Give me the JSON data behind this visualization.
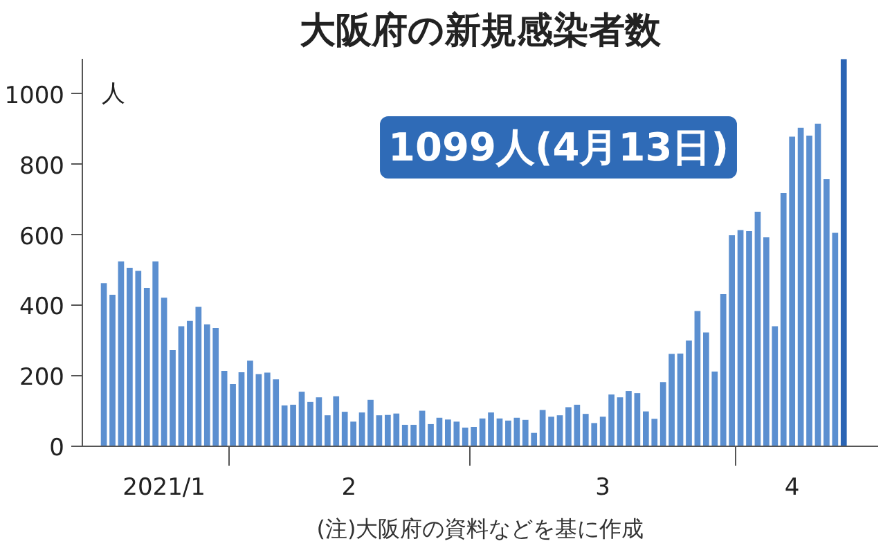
{
  "chart_data": {
    "type": "bar",
    "title": "大阪府の新規感染者数",
    "ylabel": "人",
    "x": [
      "2021-01-17",
      "2021-01-18",
      "2021-01-19",
      "2021-01-20",
      "2021-01-21",
      "2021-01-22",
      "2021-01-23",
      "2021-01-24",
      "2021-01-25",
      "2021-01-26",
      "2021-01-27",
      "2021-01-28",
      "2021-01-29",
      "2021-01-30",
      "2021-01-31",
      "2021-02-01",
      "2021-02-02",
      "2021-02-03",
      "2021-02-04",
      "2021-02-05",
      "2021-02-06",
      "2021-02-07",
      "2021-02-08",
      "2021-02-09",
      "2021-02-10",
      "2021-02-11",
      "2021-02-12",
      "2021-02-13",
      "2021-02-14",
      "2021-02-15",
      "2021-02-16",
      "2021-02-17",
      "2021-02-18",
      "2021-02-19",
      "2021-02-20",
      "2021-02-21",
      "2021-02-22",
      "2021-02-23",
      "2021-02-24",
      "2021-02-25",
      "2021-02-26",
      "2021-02-27",
      "2021-02-28",
      "2021-03-01",
      "2021-03-02",
      "2021-03-03",
      "2021-03-04",
      "2021-03-05",
      "2021-03-06",
      "2021-03-07",
      "2021-03-08",
      "2021-03-09",
      "2021-03-10",
      "2021-03-11",
      "2021-03-12",
      "2021-03-13",
      "2021-03-14",
      "2021-03-15",
      "2021-03-16",
      "2021-03-17",
      "2021-03-18",
      "2021-03-19",
      "2021-03-20",
      "2021-03-21",
      "2021-03-22",
      "2021-03-23",
      "2021-03-24",
      "2021-03-25",
      "2021-03-26",
      "2021-03-27",
      "2021-03-28",
      "2021-03-29",
      "2021-03-30",
      "2021-03-31",
      "2021-04-01",
      "2021-04-02",
      "2021-04-03",
      "2021-04-04",
      "2021-04-05",
      "2021-04-06",
      "2021-04-07",
      "2021-04-08",
      "2021-04-09",
      "2021-04-10",
      "2021-04-11",
      "2021-04-12",
      "2021-04-13"
    ],
    "values": [
      463,
      430,
      525,
      507,
      498,
      450,
      525,
      422,
      273,
      341,
      356,
      396,
      346,
      336,
      214,
      177,
      210,
      243,
      205,
      209,
      190,
      116,
      118,
      155,
      126,
      139,
      88,
      142,
      98,
      70,
      96,
      132,
      88,
      89,
      93,
      61,
      61,
      101,
      63,
      81,
      76,
      70,
      53,
      55,
      79,
      96,
      79,
      73,
      81,
      75,
      38,
      103,
      84,
      88,
      111,
      118,
      92,
      66,
      84,
      147,
      139,
      157,
      151,
      99,
      78,
      182,
      262,
      263,
      300,
      384,
      323,
      212,
      432,
      599,
      614,
      611,
      666,
      593,
      341,
      719,
      879,
      904,
      882,
      916,
      758,
      606,
      1099
    ],
    "colors": [
      "#5b8fd0",
      "#5b8fd0",
      "#5b8fd0",
      "#5b8fd0",
      "#5b8fd0",
      "#5b8fd0",
      "#5b8fd0",
      "#5b8fd0",
      "#5b8fd0",
      "#5b8fd0",
      "#5b8fd0",
      "#5b8fd0",
      "#5b8fd0",
      "#5b8fd0",
      "#5b8fd0",
      "#5b8fd0",
      "#5b8fd0",
      "#5b8fd0",
      "#5b8fd0",
      "#5b8fd0",
      "#5b8fd0",
      "#5b8fd0",
      "#5b8fd0",
      "#5b8fd0",
      "#5b8fd0",
      "#5b8fd0",
      "#5b8fd0",
      "#5b8fd0",
      "#5b8fd0",
      "#5b8fd0",
      "#5b8fd0",
      "#5b8fd0",
      "#5b8fd0",
      "#5b8fd0",
      "#5b8fd0",
      "#5b8fd0",
      "#5b8fd0",
      "#5b8fd0",
      "#5b8fd0",
      "#5b8fd0",
      "#5b8fd0",
      "#5b8fd0",
      "#5b8fd0",
      "#5b8fd0",
      "#5b8fd0",
      "#5b8fd0",
      "#5b8fd0",
      "#5b8fd0",
      "#5b8fd0",
      "#5b8fd0",
      "#5b8fd0",
      "#5b8fd0",
      "#5b8fd0",
      "#5b8fd0",
      "#5b8fd0",
      "#5b8fd0",
      "#5b8fd0",
      "#5b8fd0",
      "#5b8fd0",
      "#5b8fd0",
      "#5b8fd0",
      "#5b8fd0",
      "#5b8fd0",
      "#5b8fd0",
      "#5b8fd0",
      "#5b8fd0",
      "#5b8fd0",
      "#5b8fd0",
      "#5b8fd0",
      "#5b8fd0",
      "#5b8fd0",
      "#5b8fd0",
      "#5b8fd0",
      "#5b8fd0",
      "#5b8fd0",
      "#5b8fd0",
      "#5b8fd0",
      "#5b8fd0",
      "#5b8fd0",
      "#5b8fd0",
      "#5b8fd0",
      "#5b8fd0",
      "#5b8fd0",
      "#5b8fd0",
      "#5b8fd0",
      "#5b8fd0",
      "#2a64b4"
    ],
    "xlim": [
      "2021-01-14T12:00",
      "2021-04-17"
    ],
    "xticks": [
      {
        "value": "2021-01-31T12:00",
        "label": null
      },
      {
        "value": "2021-02-28T12:00",
        "label": null
      },
      {
        "value": "2021-03-31T12:00",
        "label": null
      },
      {
        "value": "2021-01-24",
        "label": "2021/1"
      },
      {
        "value": "2021-02-14T12:00",
        "label": "2"
      },
      {
        "value": "2021-03-16",
        "label": "3"
      },
      {
        "value": "2021-04-07",
        "label": "4"
      }
    ],
    "ylim": [
      0,
      1100
    ],
    "yticks": [
      0,
      200,
      400,
      600,
      800,
      1000
    ],
    "annotations": [
      "1099人(4月13日)",
      "(注)大阪府の資料などを基に作成"
    ]
  }
}
